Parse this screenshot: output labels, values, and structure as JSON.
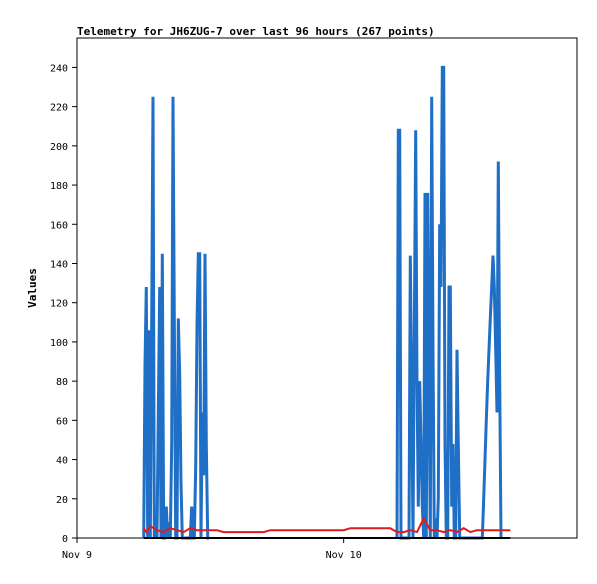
{
  "chart_data": {
    "type": "line",
    "title": "Telemetry for JH6ZUG-7 over last 96 hours (267 points)",
    "xlabel": "",
    "ylabel": "Values",
    "ylim": [
      0,
      255
    ],
    "yticks": [
      0,
      20,
      40,
      60,
      80,
      100,
      120,
      140,
      160,
      180,
      200,
      220,
      240
    ],
    "xlim": [
      0,
      3.75
    ],
    "xticks": [
      {
        "label": "Nov 9",
        "value": 0
      },
      {
        "label": "Nov 10",
        "value": 2
      }
    ],
    "grid": false,
    "colors": {
      "series_blue": "#1f6fc6",
      "series_red": "#e0191c",
      "series_black": "#000000"
    },
    "series": [
      {
        "values_x": [
          0.5,
          0.51,
          0.52,
          0.53,
          0.54,
          0.55,
          0.56,
          0.57,
          0.58,
          0.59,
          0.6,
          0.61,
          0.62,
          0.63,
          0.64,
          0.65,
          0.66,
          0.67,
          0.68,
          0.69,
          0.7,
          0.71,
          0.72,
          0.73,
          0.74,
          0.75,
          0.76,
          0.77,
          0.78,
          0.79,
          0.8,
          0.81,
          0.82,
          0.83,
          0.84,
          0.85,
          0.86,
          0.87,
          0.88,
          0.89,
          0.9,
          0.91,
          0.92,
          0.93,
          0.94,
          0.95,
          0.96,
          0.97,
          0.98,
          0.99
        ],
        "values_y": [
          0,
          88,
          128,
          0,
          106,
          0,
          112,
          225,
          0,
          2,
          0,
          64,
          128,
          0,
          145,
          0,
          0,
          16,
          0,
          8,
          0,
          48,
          225,
          112,
          0,
          0,
          112,
          83,
          28,
          0,
          0,
          0,
          0,
          0,
          0,
          0,
          16,
          0,
          0,
          36,
          108,
          145,
          145,
          0,
          64,
          32,
          145,
          48,
          0,
          0
        ]
      },
      {
        "values_x": [
          2.4,
          2.41,
          2.42,
          2.43,
          2.44,
          2.45,
          2.46,
          2.47,
          2.48,
          2.49,
          2.5,
          2.51,
          2.52,
          2.53,
          2.54,
          2.55,
          2.56,
          2.57,
          2.58,
          2.59,
          2.6,
          2.61,
          2.62,
          2.63,
          2.64,
          2.65,
          2.66,
          2.67,
          2.68,
          2.69,
          2.7,
          2.71,
          2.72,
          2.73,
          2.74,
          2.75,
          2.76,
          2.77,
          2.78,
          2.79,
          2.8,
          2.81,
          2.82,
          2.83,
          2.84,
          2.85,
          2.86,
          2.87,
          2.88,
          2.89,
          2.9,
          2.91,
          2.92,
          2.93,
          2.94,
          2.95,
          2.96,
          2.97,
          2.98,
          2.99,
          3.0,
          3.01,
          3.02,
          3.03,
          3.04,
          3.05,
          3.06,
          3.07,
          3.08,
          3.09,
          3.1,
          3.11,
          3.12,
          3.13,
          3.14,
          3.15,
          3.16,
          3.17,
          3.18
        ],
        "values_y": [
          0,
          208,
          208,
          0,
          0,
          0,
          0,
          0,
          0,
          0,
          144,
          72,
          0,
          104,
          208,
          80,
          16,
          80,
          48,
          16,
          0,
          176,
          0,
          176,
          88,
          0,
          225,
          96,
          0,
          10,
          0,
          20,
          160,
          128,
          240,
          240,
          48,
          0,
          0,
          128,
          128,
          16,
          48,
          0,
          0,
          96,
          48,
          0,
          0,
          0,
          0,
          0,
          0,
          0,
          0,
          0,
          0,
          0,
          0,
          0,
          0,
          0,
          0,
          0,
          0,
          20,
          40,
          60,
          80,
          96,
          112,
          128,
          144,
          128,
          96,
          64,
          192,
          80,
          0
        ]
      },
      {
        "name_hidden": true,
        "values_x": [
          0.5,
          0.52,
          0.55,
          0.6,
          0.65,
          0.7,
          0.75,
          0.8,
          0.85,
          0.9,
          0.95,
          1.0,
          1.05,
          1.1,
          1.15,
          1.2,
          1.25,
          1.3,
          1.35,
          1.4,
          1.45,
          1.5,
          1.55,
          1.6,
          1.65,
          1.7,
          1.75,
          1.8,
          1.85,
          1.9,
          1.95,
          2.0,
          2.05,
          2.1,
          2.15,
          2.2,
          2.25,
          2.3,
          2.35,
          2.4,
          2.45,
          2.5,
          2.55,
          2.6,
          2.65,
          2.7,
          2.75,
          2.8,
          2.85,
          2.9,
          2.95,
          3.0,
          3.05,
          3.1,
          3.15,
          3.2,
          3.25
        ],
        "values_y": [
          5,
          3,
          6,
          4,
          3,
          5,
          4,
          3,
          5,
          4,
          4,
          4,
          4,
          3,
          3,
          3,
          3,
          3,
          3,
          3,
          4,
          4,
          4,
          4,
          4,
          4,
          4,
          4,
          4,
          4,
          4,
          4,
          5,
          5,
          5,
          5,
          5,
          5,
          5,
          3,
          3,
          4,
          3,
          10,
          4,
          4,
          3,
          4,
          3,
          5,
          3,
          4,
          4,
          4,
          4,
          4,
          4
        ]
      },
      {
        "values_x": [
          0.5,
          3.25
        ],
        "values_y": [
          0,
          0
        ]
      }
    ]
  }
}
